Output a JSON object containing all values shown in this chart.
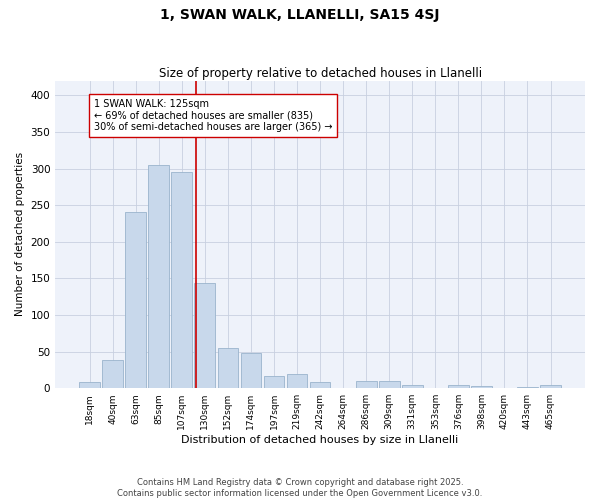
{
  "title1": "1, SWAN WALK, LLANELLI, SA15 4SJ",
  "title2": "Size of property relative to detached houses in Llanelli",
  "xlabel": "Distribution of detached houses by size in Llanelli",
  "ylabel": "Number of detached properties",
  "property_label": "1 SWAN WALK: 125sqm",
  "annotation_line1": "← 69% of detached houses are smaller (835)",
  "annotation_line2": "30% of semi-detached houses are larger (365) →",
  "bar_color": "#c8d8eb",
  "bar_edge_color": "#9ab4cc",
  "vline_color": "#cc0000",
  "background_color": "#eef2fa",
  "grid_color": "#c8d0e0",
  "categories": [
    "18sqm",
    "40sqm",
    "63sqm",
    "85sqm",
    "107sqm",
    "130sqm",
    "152sqm",
    "174sqm",
    "197sqm",
    "219sqm",
    "242sqm",
    "264sqm",
    "286sqm",
    "309sqm",
    "331sqm",
    "353sqm",
    "376sqm",
    "398sqm",
    "420sqm",
    "443sqm",
    "465sqm"
  ],
  "values": [
    8,
    38,
    240,
    305,
    295,
    143,
    55,
    48,
    17,
    19,
    8,
    0,
    10,
    10,
    5,
    0,
    4,
    3,
    0,
    1,
    4
  ],
  "ylim": [
    0,
    420
  ],
  "yticks": [
    0,
    50,
    100,
    150,
    200,
    250,
    300,
    350,
    400
  ],
  "vline_pos": 4.62,
  "footnote": "Contains HM Land Registry data © Crown copyright and database right 2025.\nContains public sector information licensed under the Open Government Licence v3.0."
}
